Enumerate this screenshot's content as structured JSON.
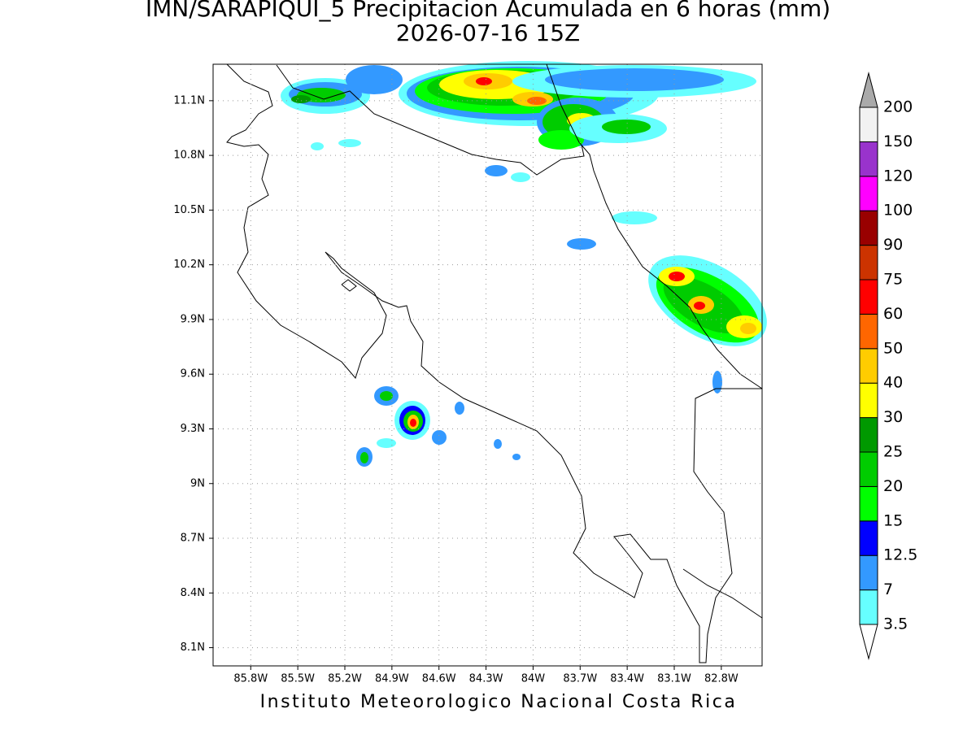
{
  "title": "IMN/SARAPIQUI_5 Precipitacion Acumulada en 6 horas (mm)",
  "subtitle": "2026-07-16 15Z",
  "footer": "Instituto Meteorologico Nacional Costa Rica",
  "map": {
    "xlim": [
      -86.04,
      -82.54
    ],
    "ylim": [
      8.0,
      11.3
    ],
    "xticks": [
      {
        "value": -85.8,
        "label": "85.8W"
      },
      {
        "value": -85.5,
        "label": "85.5W"
      },
      {
        "value": -85.2,
        "label": "85.2W"
      },
      {
        "value": -84.9,
        "label": "84.9W"
      },
      {
        "value": -84.6,
        "label": "84.6W"
      },
      {
        "value": -84.3,
        "label": "84.3W"
      },
      {
        "value": -84.0,
        "label": "84W"
      },
      {
        "value": -83.7,
        "label": "83.7W"
      },
      {
        "value": -83.4,
        "label": "83.4W"
      },
      {
        "value": -83.1,
        "label": "83.1W"
      },
      {
        "value": -82.8,
        "label": "82.8W"
      }
    ],
    "yticks": [
      {
        "value": 8.1,
        "label": "8.1N"
      },
      {
        "value": 8.4,
        "label": "8.4N"
      },
      {
        "value": 8.7,
        "label": "8.7N"
      },
      {
        "value": 9.0,
        "label": "9N"
      },
      {
        "value": 9.3,
        "label": "9.3N"
      },
      {
        "value": 9.6,
        "label": "9.6N"
      },
      {
        "value": 9.9,
        "label": "9.9N"
      },
      {
        "value": 10.2,
        "label": "10.2N"
      },
      {
        "value": 10.5,
        "label": "10.5N"
      },
      {
        "value": 10.8,
        "label": "10.8N"
      },
      {
        "value": 11.1,
        "label": "11.1N"
      }
    ]
  },
  "colorbar": {
    "levels": [
      3.5,
      7,
      12.5,
      15,
      20,
      25,
      30,
      40,
      50,
      60,
      75,
      90,
      100,
      120,
      150,
      200
    ],
    "colors": [
      "#66ffff",
      "#3399ff",
      "#0000ff",
      "#00ff00",
      "#00cc00",
      "#009900",
      "#ffff00",
      "#ffcc00",
      "#ff6600",
      "#ff0000",
      "#cc3300",
      "#990000",
      "#ff00ff",
      "#9933cc",
      "#f2f2f2"
    ],
    "under_color": "#ffffff",
    "over_color": "#aaaaaa"
  }
}
